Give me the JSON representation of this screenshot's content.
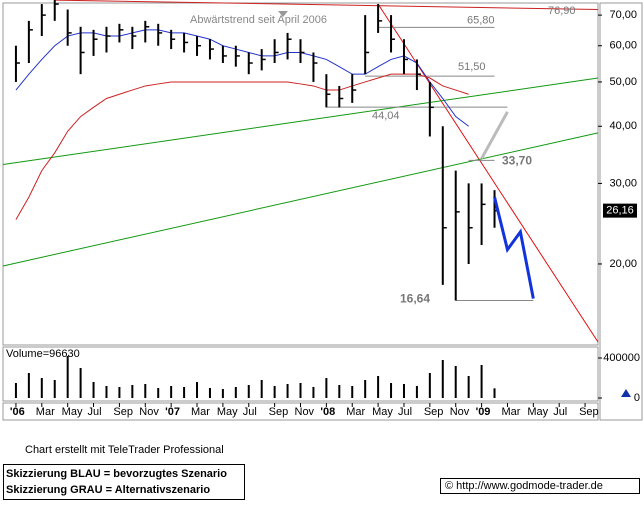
{
  "chart_data": [
    {
      "type": "ohlc",
      "annotation": "Abwärtstrend seit April 2006",
      "x": [
        "2006-01",
        "2006-02",
        "2006-03",
        "2006-04",
        "2006-05",
        "2006-06",
        "2006-07",
        "2006-08",
        "2006-09",
        "2006-10",
        "2006-11",
        "2006-12",
        "2007-01",
        "2007-02",
        "2007-03",
        "2007-04",
        "2007-05",
        "2007-06",
        "2007-07",
        "2007-08",
        "2007-09",
        "2007-10",
        "2007-11",
        "2007-12",
        "2008-01",
        "2008-02",
        "2008-03",
        "2008-04",
        "2008-05",
        "2008-06",
        "2008-07",
        "2008-08",
        "2008-09",
        "2008-10",
        "2008-11",
        "2008-12",
        "2009-01",
        "2009-02"
      ],
      "high": [
        60,
        68,
        74,
        77,
        72,
        66,
        65,
        66,
        67,
        66,
        68,
        67,
        65,
        64,
        63,
        62,
        60,
        60,
        58,
        59,
        62,
        64,
        62,
        58,
        52,
        49,
        52,
        70,
        74,
        70,
        62,
        56,
        50,
        40,
        32,
        30,
        30,
        29
      ],
      "low": [
        50,
        55,
        63,
        68,
        60,
        52,
        57,
        58,
        61,
        59,
        61,
        60,
        59,
        58,
        57,
        56,
        55,
        54,
        52,
        53,
        55,
        56,
        55,
        50,
        44,
        44,
        45,
        52,
        64,
        58,
        52,
        48,
        38,
        18,
        16.64,
        20,
        22,
        24
      ],
      "close": [
        55,
        65,
        70,
        74,
        64,
        58,
        62,
        63,
        65,
        63,
        66,
        64,
        62,
        61,
        60,
        59,
        57,
        57,
        55,
        56,
        58,
        62,
        58,
        55,
        47,
        46,
        48,
        58,
        68,
        62,
        56,
        52,
        44,
        24,
        26,
        24,
        27,
        26.16
      ],
      "color": "#000000",
      "log_scale": true,
      "xlim": [
        "2005-12",
        "2009-10"
      ],
      "ylim": [
        13.3,
        74.4
      ],
      "yticks": [
        {
          "value": 70,
          "label": "70,00"
        },
        {
          "value": 60,
          "label": "60,00"
        },
        {
          "value": 50,
          "label": "50,00"
        },
        {
          "value": 40,
          "label": "40,00"
        },
        {
          "value": 30,
          "label": "30,00"
        },
        {
          "value": 20,
          "label": "20,00"
        }
      ],
      "xticks": [
        {
          "value": "2006-01",
          "label": "'06"
        },
        {
          "value": "2006-03",
          "label": "Mar"
        },
        {
          "value": "2006-05",
          "label": "May"
        },
        {
          "value": "2006-07",
          "label": "Jul"
        },
        {
          "value": "2006-09",
          "label": "Sep"
        },
        {
          "value": "2006-11",
          "label": "Nov"
        },
        {
          "value": "2007-01",
          "label": "'07"
        },
        {
          "value": "2007-03",
          "label": "Mar"
        },
        {
          "value": "2007-05",
          "label": "May"
        },
        {
          "value": "2007-07",
          "label": "Jul"
        },
        {
          "value": "2007-09",
          "label": "Sep"
        },
        {
          "value": "2007-11",
          "label": "Nov"
        },
        {
          "value": "2008-01",
          "label": "'08"
        },
        {
          "value": "2008-03",
          "label": "Mar"
        },
        {
          "value": "2008-05",
          "label": "May"
        },
        {
          "value": "2008-07",
          "label": "Jul"
        },
        {
          "value": "2008-09",
          "label": "Sep"
        },
        {
          "value": "2008-11",
          "label": "Nov"
        },
        {
          "value": "2009-01",
          "label": "'09"
        },
        {
          "value": "2009-03",
          "label": "Mar"
        },
        {
          "value": "2009-05",
          "label": "May"
        },
        {
          "value": "2009-07",
          "label": "Jul"
        },
        {
          "value": "2009-09",
          "label": "Sep"
        }
      ],
      "last_price": {
        "value": 26.16,
        "label": "26,16"
      },
      "moving_averages": [
        {
          "color": "#2233cc",
          "values": [
            48,
            52,
            56,
            60,
            63,
            64,
            64,
            63,
            63,
            64,
            65,
            65,
            64,
            64,
            63,
            62,
            60,
            59,
            58,
            57,
            57,
            58,
            58,
            57,
            56,
            54,
            52,
            52,
            54,
            56,
            57,
            55,
            50,
            46,
            42,
            40,
            null,
            null
          ]
        },
        {
          "color": "#cc2222",
          "values": [
            25,
            28,
            32,
            35,
            39,
            42,
            44,
            46,
            47,
            48,
            49,
            49.5,
            50,
            50,
            50,
            50,
            50,
            50,
            50,
            50,
            50,
            50,
            49.5,
            49,
            48,
            48,
            49,
            50,
            51,
            52,
            52,
            52,
            51,
            49,
            48,
            47,
            null,
            null
          ]
        }
      ],
      "trend_lines": [
        {
          "color": "#cc2222",
          "x": [
            "2006-04",
            "2009-10"
          ],
          "values": [
            75.5,
            72
          ]
        },
        {
          "color": "#dd1111",
          "x": [
            "2008-05",
            "2009-10"
          ],
          "values": [
            74,
            13.5
          ]
        },
        {
          "color": "#119911",
          "x": [
            "2005-12",
            "2009-10"
          ],
          "values": [
            33,
            51
          ]
        },
        {
          "color": "#119911",
          "x": [
            "2005-12",
            "2009-10"
          ],
          "values": [
            19.8,
            38.7
          ]
        }
      ],
      "levels": [
        {
          "value": 76.9,
          "label": "76,90"
        },
        {
          "value": 65.8,
          "label": "65,80",
          "x": [
            "2008-05",
            "2009-02"
          ]
        },
        {
          "value": 51.5,
          "label": "51,50",
          "x": [
            "2008-04",
            "2009-02"
          ]
        },
        {
          "value": 44.04,
          "label": "44,04",
          "x": [
            "2008-01",
            "2009-03"
          ]
        },
        {
          "value": 33.7,
          "label": "33,70",
          "x": [
            "2008-12",
            "2009-02"
          ]
        },
        {
          "value": 16.64,
          "label": "16,64",
          "x": [
            "2008-11",
            "2009-05"
          ]
        }
      ],
      "scenarios": [
        {
          "color": "#1133dd",
          "x": [
            "2009-02",
            "2009-03",
            "2009-04",
            "2009-05"
          ],
          "values": [
            28,
            21.5,
            23.5,
            16.8
          ]
        },
        {
          "color": "#bbbbbb",
          "x": [
            "2009-01",
            "2009-03"
          ],
          "values": [
            34,
            43
          ]
        }
      ]
    },
    {
      "type": "bar",
      "label": "Volume=96630",
      "color": "#000000",
      "x": [
        "2006-01",
        "2006-02",
        "2006-03",
        "2006-04",
        "2006-05",
        "2006-06",
        "2006-07",
        "2006-08",
        "2006-09",
        "2006-10",
        "2006-11",
        "2006-12",
        "2007-01",
        "2007-02",
        "2007-03",
        "2007-04",
        "2007-05",
        "2007-06",
        "2007-07",
        "2007-08",
        "2007-09",
        "2007-10",
        "2007-11",
        "2007-12",
        "2008-01",
        "2008-02",
        "2008-03",
        "2008-04",
        "2008-05",
        "2008-06",
        "2008-07",
        "2008-08",
        "2008-09",
        "2008-10",
        "2008-11",
        "2008-12",
        "2009-01",
        "2009-02"
      ],
      "values": [
        150000,
        250000,
        200000,
        180000,
        420000,
        300000,
        160000,
        120000,
        110000,
        130000,
        140000,
        100000,
        120000,
        110000,
        160000,
        100000,
        90000,
        110000,
        130000,
        180000,
        120000,
        140000,
        150000,
        110000,
        200000,
        130000,
        120000,
        180000,
        220000,
        150000,
        140000,
        120000,
        250000,
        380000,
        320000,
        220000,
        330000,
        96630
      ],
      "xlim": [
        "2005-12",
        "2009-10"
      ],
      "ylim": [
        0,
        480000
      ],
      "yticks": [
        400000,
        0
      ]
    }
  ],
  "footer": {
    "credit": "Chart erstellt mit TeleTrader Professional",
    "notes": [
      "Skizzierung BLAU = bevorzugtes Szenario",
      "Skizzierung GRAU = Alternativszenario"
    ],
    "source": "© http://www.godmode-trader.de"
  }
}
